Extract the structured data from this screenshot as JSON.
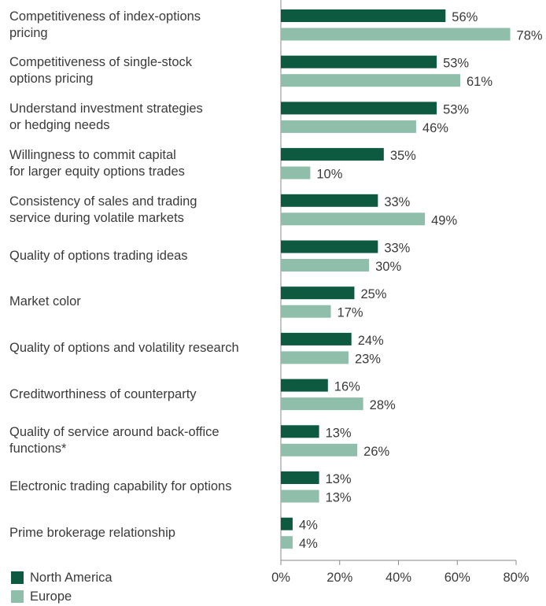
{
  "chart_data": {
    "type": "bar",
    "orientation": "horizontal",
    "categories": [
      "Competitiveness of index-options\npricing",
      "Competitiveness of single-stock\noptions pricing",
      "Understand investment strategies\nor hedging needs",
      "Willingness to commit capital\nfor larger equity options trades",
      "Consistency of sales and trading\nservice during volatile markets",
      "Quality of options trading ideas",
      "Market color",
      "Quality of options and volatility research",
      "Creditworthiness of counterparty",
      "Quality of service around back-office\nfunctions*",
      "Electronic trading capability for options",
      "Prime brokerage relationship"
    ],
    "series": [
      {
        "name": "North America",
        "color": "#0d5a41",
        "values": [
          56,
          53,
          53,
          35,
          33,
          33,
          25,
          24,
          16,
          13,
          13,
          4
        ]
      },
      {
        "name": "Europe",
        "color": "#8fbfaa",
        "values": [
          78,
          61,
          46,
          10,
          49,
          30,
          17,
          23,
          28,
          26,
          13,
          4
        ]
      }
    ],
    "value_suffix": "%",
    "xlim": [
      0,
      80
    ],
    "xticks": [
      0,
      20,
      40,
      60,
      80
    ],
    "xtick_labels": [
      "0%",
      "20%",
      "40%",
      "60%",
      "80%"
    ],
    "grid": false,
    "legend_position": "bottom-left"
  }
}
